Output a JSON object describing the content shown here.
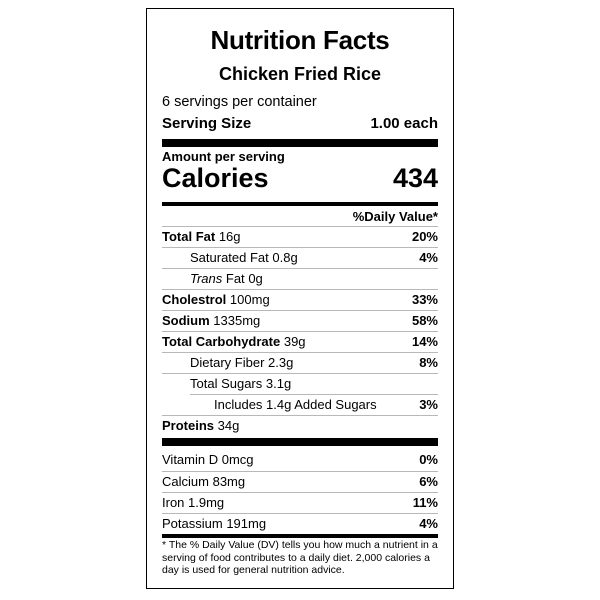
{
  "label": {
    "title": "Nutrition Facts",
    "food_name": "Chicken Fried Rice",
    "servings_per_container": "6 servings per container",
    "serving_size_label": "Serving Size",
    "serving_size_value": "1.00 each",
    "amount_per_serving": "Amount per serving",
    "calories_label": "Calories",
    "calories_value": "434",
    "dv_header": "%Daily Value*",
    "nutrients": [
      {
        "name": "Total Fat",
        "amount": "16g",
        "dv": "20%"
      },
      {
        "name": "Saturated Fat",
        "amount": "0.8g",
        "dv": "4%"
      },
      {
        "name": "Trans",
        "suffix": "Fat",
        "amount": "0g",
        "dv": ""
      },
      {
        "name": "Cholestrol",
        "amount": "100mg",
        "dv": "33%"
      },
      {
        "name": "Sodium",
        "amount": "1335mg",
        "dv": "58%"
      },
      {
        "name": "Total Carbohydrate",
        "amount": "39g",
        "dv": "14%"
      },
      {
        "name": "Dietary Fiber",
        "amount": "2.3g",
        "dv": "8%"
      },
      {
        "name": "Total Sugars",
        "amount": "3.1g",
        "dv": ""
      },
      {
        "name": "Includes 1.4g Added Sugars",
        "amount": "",
        "dv": "3%"
      },
      {
        "name": "Proteins",
        "amount": "34g",
        "dv": ""
      }
    ],
    "vitamins": [
      {
        "name": "Vitamin D",
        "amount": "0mcg",
        "dv": "0%"
      },
      {
        "name": "Calcium",
        "amount": "83mg",
        "dv": "6%"
      },
      {
        "name": "Iron",
        "amount": "1.9mg",
        "dv": "11%"
      },
      {
        "name": "Potassium",
        "amount": "191mg",
        "dv": "4%"
      }
    ],
    "footnote": "* The % Daily Value (DV) tells you how much a nutrient in a serving of food contributes to a daily diet. 2,000 calories a day is used for general nutrition advice."
  }
}
